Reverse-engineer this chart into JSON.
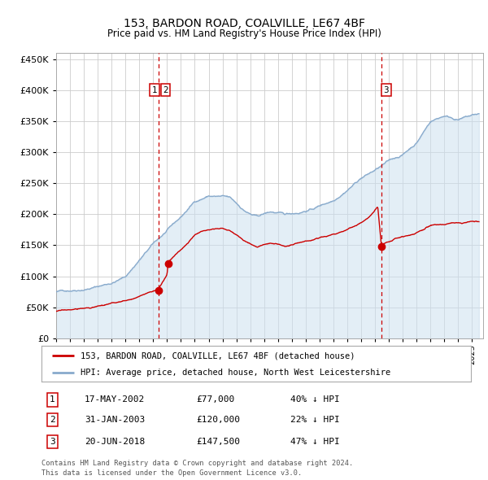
{
  "title": "153, BARDON ROAD, COALVILLE, LE67 4BF",
  "subtitle": "Price paid vs. HM Land Registry's House Price Index (HPI)",
  "legend_line1": "153, BARDON ROAD, COALVILLE, LE67 4BF (detached house)",
  "legend_line2": "HPI: Average price, detached house, North West Leicestershire",
  "footnote1": "Contains HM Land Registry data © Crown copyright and database right 2024.",
  "footnote2": "This data is licensed under the Open Government Licence v3.0.",
  "transactions": [
    {
      "num": 1,
      "date": "17-MAY-2002",
      "price": 77000,
      "hpi_diff": "40% ↓ HPI",
      "x_year": 2002.37
    },
    {
      "num": 2,
      "date": "31-JAN-2003",
      "price": 120000,
      "hpi_diff": "22% ↓ HPI",
      "x_year": 2003.08
    },
    {
      "num": 3,
      "date": "20-JUN-2018",
      "price": 147500,
      "hpi_diff": "47% ↓ HPI",
      "x_year": 2018.46
    }
  ],
  "red_line_color": "#cc0000",
  "blue_line_color": "#88aacc",
  "blue_fill_color": "#cce0f0",
  "vline_color": "#cc0000",
  "background_color": "#ffffff",
  "plot_bg_color": "#ffffff",
  "grid_color": "#cccccc",
  "box_color": "#cc0000",
  "ylim": [
    0,
    460000
  ],
  "yticks": [
    0,
    50000,
    100000,
    150000,
    200000,
    250000,
    300000,
    350000,
    400000,
    450000
  ],
  "xlim_start": 1995.0,
  "xlim_end": 2025.8
}
